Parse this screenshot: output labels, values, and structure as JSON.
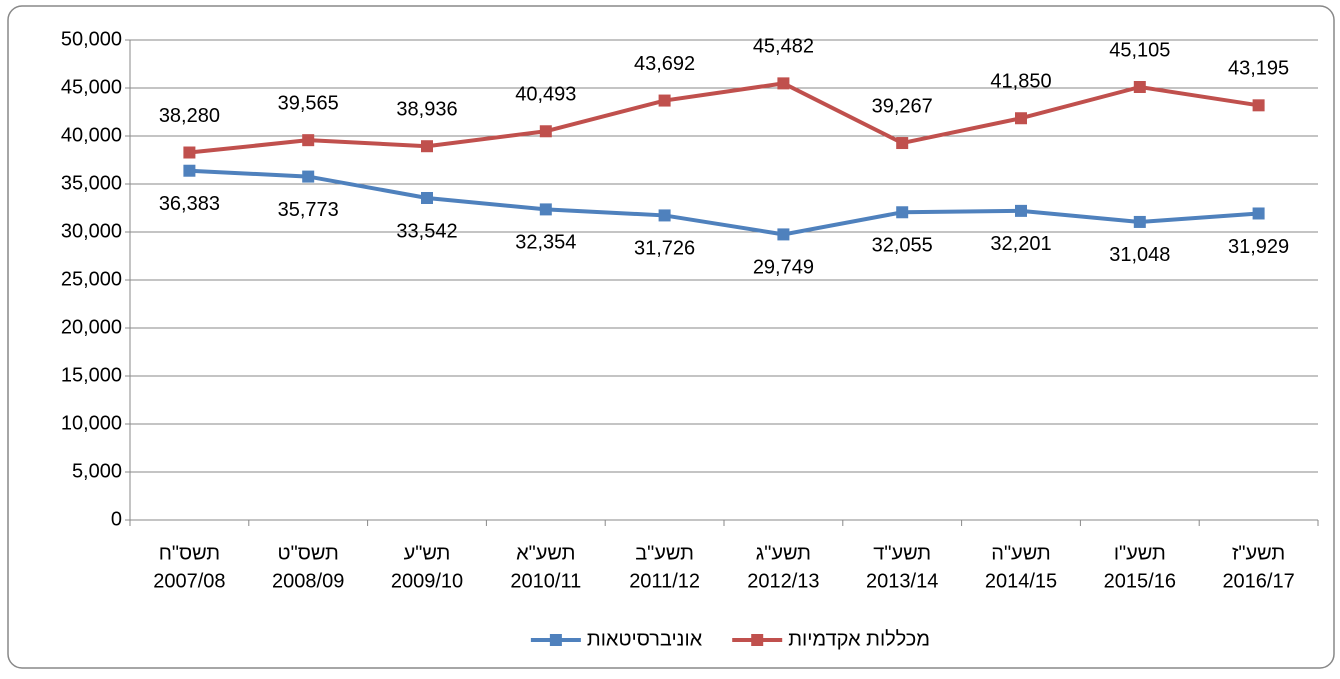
{
  "chart_data": {
    "type": "line",
    "categories": [
      [
        "תשס\"ח",
        "2007/08"
      ],
      [
        "תשס\"ט",
        "2008/09"
      ],
      [
        "תש\"ע",
        "2009/10"
      ],
      [
        "תשע\"א",
        "2010/11"
      ],
      [
        "תשע\"ב",
        "2011/12"
      ],
      [
        "תשע\"ג",
        "2012/13"
      ],
      [
        "תשע\"ד",
        "2013/14"
      ],
      [
        "תשע\"ה",
        "2014/15"
      ],
      [
        "תשע\"ו",
        "2015/16"
      ],
      [
        "תשע\"ז",
        "2016/17"
      ]
    ],
    "series": [
      {
        "name": "מכללות אקדמיות",
        "color": "#c0504d",
        "values": [
          38280,
          39565,
          38936,
          40493,
          43692,
          45482,
          39267,
          41850,
          45105,
          43195
        ],
        "value_labels": [
          "38,280",
          "39,565",
          "38,936",
          "40,493",
          "43,692",
          "45,482",
          "39,267",
          "41,850",
          "45,105",
          "43,195"
        ]
      },
      {
        "name": "אוניברסיטאות",
        "color": "#4f81bd",
        "values": [
          36383,
          35773,
          33542,
          32354,
          31726,
          29749,
          32055,
          32201,
          31048,
          31929
        ],
        "value_labels": [
          "36,383",
          "35,773",
          "33,542",
          "32,354",
          "31,726",
          "29,749",
          "32,055",
          "32,201",
          "31,048",
          "31,929"
        ]
      }
    ],
    "ylim": [
      0,
      50000
    ],
    "yticks": [
      0,
      {
        "value": 5000,
        "label": "5,000"
      },
      {
        "value": 10000,
        "label": "10,000"
      },
      {
        "value": 15000,
        "label": "15,000"
      },
      {
        "value": 20000,
        "label": "20,000"
      },
      {
        "value": 25000,
        "label": "25,000"
      },
      {
        "value": 30000,
        "label": "30,000"
      },
      {
        "value": 35000,
        "label": "35,000"
      },
      {
        "value": 40000,
        "label": "40,000"
      },
      {
        "value": 45000,
        "label": "45,000"
      },
      {
        "value": 50000,
        "label": "50,000"
      }
    ],
    "grid": true,
    "legend": "bottom"
  }
}
